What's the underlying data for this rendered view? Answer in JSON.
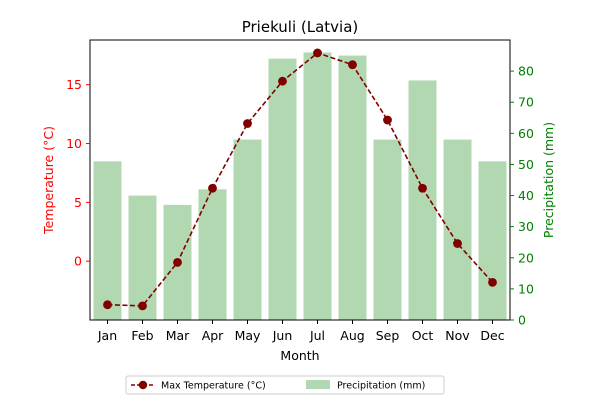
{
  "chart_data": {
    "type": "bar+line",
    "title": "Priekuli (Latvia)",
    "categories": [
      "Jan",
      "Feb",
      "Mar",
      "Apr",
      "May",
      "Jun",
      "Jul",
      "Aug",
      "Sep",
      "Oct",
      "Nov",
      "Dec"
    ],
    "xlabel": "Month",
    "y_left": {
      "label": "Temperature (°C)",
      "ylim": [
        -5,
        18.8
      ],
      "ticks": [
        0,
        5,
        10,
        15
      ],
      "color": "#ff0000"
    },
    "y_right": {
      "label": "Precipitation (mm)",
      "ylim": [
        0,
        90
      ],
      "ticks": [
        0,
        10,
        20,
        30,
        40,
        50,
        60,
        70,
        80
      ],
      "color": "#008000"
    },
    "series": [
      {
        "name": "Max Temperature (°C)",
        "type": "line",
        "axis": "left",
        "color": "#800000",
        "values": [
          -3.7,
          -3.8,
          -0.1,
          6.2,
          11.7,
          15.3,
          17.7,
          16.7,
          12.0,
          6.2,
          1.5,
          -1.8
        ]
      },
      {
        "name": "Precipitation (mm)",
        "type": "bar",
        "axis": "right",
        "color": "#b1d8b1",
        "values": [
          51,
          40,
          37,
          42,
          58,
          84,
          86,
          85,
          58,
          77,
          58,
          51
        ]
      }
    ],
    "legend_position": "bottom-center",
    "grid": false
  }
}
